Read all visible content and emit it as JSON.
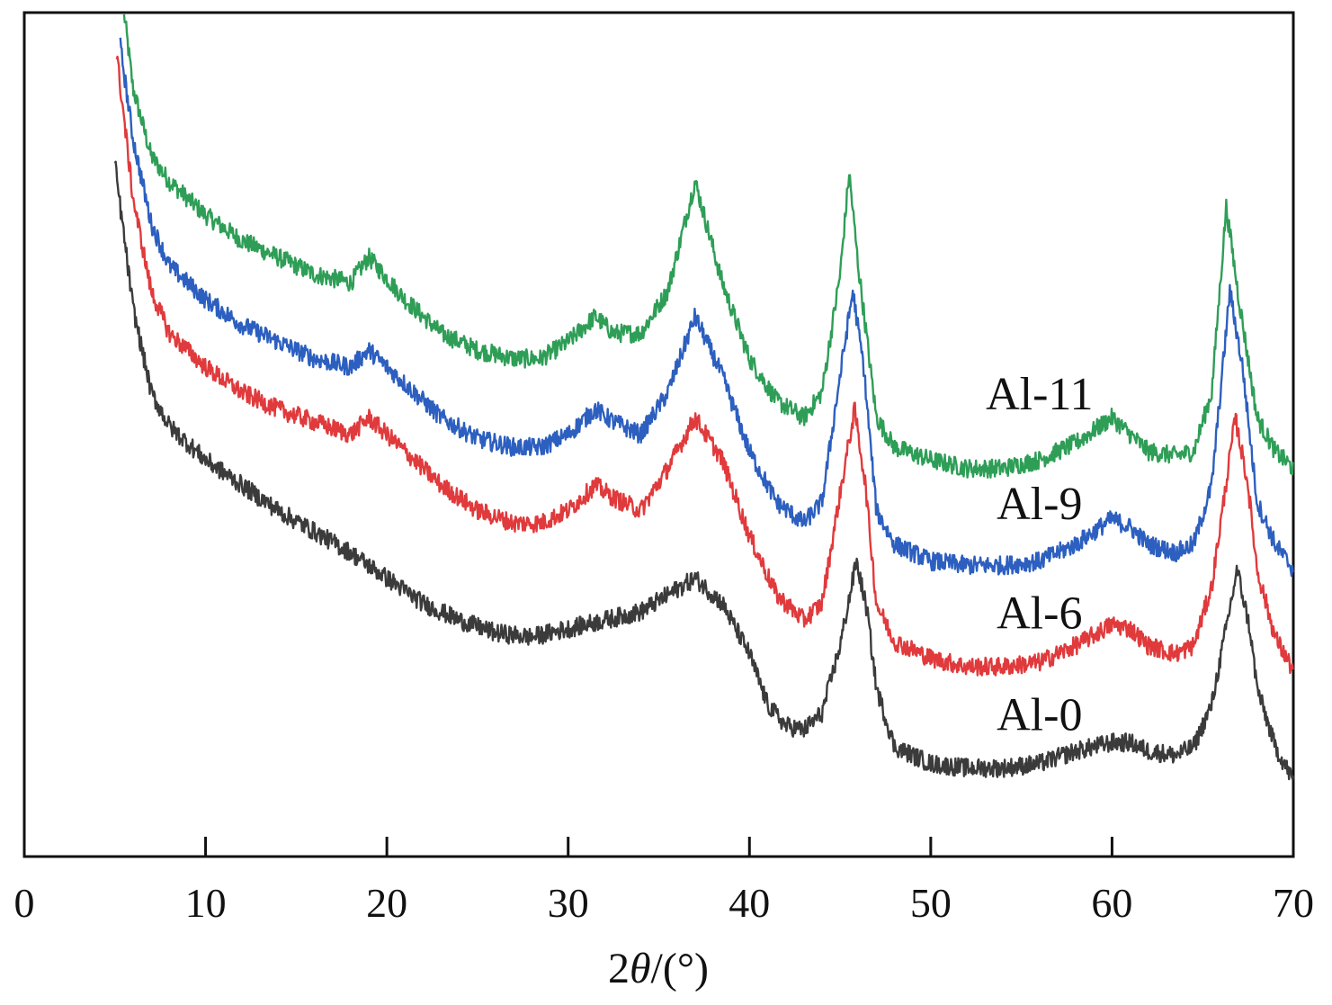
{
  "chart_data": {
    "type": "line",
    "title": "",
    "xlabel_prefix": "2",
    "xlabel_theta": "θ",
    "xlabel_suffix": "/(°)",
    "ylabel": "",
    "xlim": [
      0,
      70
    ],
    "ylim": [
      0,
      100
    ],
    "grid": false,
    "x_ticks": [
      0,
      10,
      20,
      30,
      40,
      50,
      60,
      70
    ],
    "x_tick_labels": [
      "0",
      "10",
      "20",
      "30",
      "40",
      "50",
      "60",
      "70"
    ],
    "series": [
      {
        "name": "Al-11",
        "color": "#2e9e57",
        "points": [
          [
            5.5,
            100
          ],
          [
            6,
            91
          ],
          [
            7,
            83
          ],
          [
            8,
            80
          ],
          [
            10,
            76
          ],
          [
            12,
            73
          ],
          [
            14,
            71
          ],
          [
            16,
            69
          ],
          [
            18,
            68
          ],
          [
            19,
            71
          ],
          [
            21,
            66
          ],
          [
            23,
            62
          ],
          [
            25,
            60
          ],
          [
            27,
            59
          ],
          [
            28.5,
            59
          ],
          [
            30,
            61
          ],
          [
            31.5,
            64
          ],
          [
            32.5,
            62
          ],
          [
            34,
            62
          ],
          [
            35.5,
            67
          ],
          [
            37,
            80
          ],
          [
            38.5,
            68
          ],
          [
            40,
            59
          ],
          [
            41.5,
            54
          ],
          [
            43,
            52
          ],
          [
            44,
            55
          ],
          [
            45,
            69
          ],
          [
            45.5,
            81
          ],
          [
            46,
            70
          ],
          [
            47,
            52
          ],
          [
            48,
            48.5
          ],
          [
            50,
            47
          ],
          [
            52,
            46
          ],
          [
            54,
            46
          ],
          [
            56,
            47
          ],
          [
            58,
            49
          ],
          [
            60,
            52
          ],
          [
            61,
            50
          ],
          [
            62,
            48
          ],
          [
            63.5,
            47.5
          ],
          [
            64.5,
            48
          ],
          [
            65.5,
            55
          ],
          [
            66.3,
            77
          ],
          [
            67,
            66
          ],
          [
            68,
            52
          ],
          [
            69,
            48
          ],
          [
            70,
            46
          ]
        ]
      },
      {
        "name": "Al-9",
        "color": "#2c5fbf",
        "points": [
          [
            5.3,
            96
          ],
          [
            6,
            85
          ],
          [
            7,
            75
          ],
          [
            8,
            70
          ],
          [
            10,
            66
          ],
          [
            12,
            63
          ],
          [
            14,
            61
          ],
          [
            16,
            59
          ],
          [
            18,
            58
          ],
          [
            19,
            60
          ],
          [
            21,
            56
          ],
          [
            23,
            52
          ],
          [
            25,
            49.5
          ],
          [
            27,
            48.5
          ],
          [
            28.5,
            48.5
          ],
          [
            30,
            50
          ],
          [
            31.5,
            53
          ],
          [
            32.5,
            51.5
          ],
          [
            34,
            50
          ],
          [
            35.5,
            55
          ],
          [
            37,
            64
          ],
          [
            38.5,
            57
          ],
          [
            40,
            48
          ],
          [
            41.5,
            42
          ],
          [
            43,
            39.5
          ],
          [
            44,
            42
          ],
          [
            45,
            57
          ],
          [
            45.7,
            67
          ],
          [
            46.3,
            58
          ],
          [
            47,
            41
          ],
          [
            48,
            37
          ],
          [
            50,
            35
          ],
          [
            52,
            34.5
          ],
          [
            54,
            34.5
          ],
          [
            56,
            35
          ],
          [
            58,
            37
          ],
          [
            60,
            40
          ],
          [
            61,
            39
          ],
          [
            62,
            37
          ],
          [
            63.5,
            36
          ],
          [
            64.5,
            37
          ],
          [
            65.5,
            44
          ],
          [
            66.5,
            67
          ],
          [
            67.2,
            58
          ],
          [
            68,
            42
          ],
          [
            69,
            37
          ],
          [
            70,
            34
          ]
        ]
      },
      {
        "name": "Al-6",
        "color": "#e03a3c",
        "points": [
          [
            5.1,
            95
          ],
          [
            6,
            78
          ],
          [
            7,
            67
          ],
          [
            8,
            62
          ],
          [
            10,
            58
          ],
          [
            12,
            55
          ],
          [
            14,
            53
          ],
          [
            16,
            51.5
          ],
          [
            18,
            50
          ],
          [
            19,
            52
          ],
          [
            21,
            48
          ],
          [
            23,
            44
          ],
          [
            25,
            41
          ],
          [
            27,
            39.5
          ],
          [
            28.5,
            39.5
          ],
          [
            30,
            41
          ],
          [
            31.5,
            44
          ],
          [
            32.5,
            42.5
          ],
          [
            34,
            41
          ],
          [
            35.5,
            46
          ],
          [
            37,
            52
          ],
          [
            38.5,
            47
          ],
          [
            40,
            38
          ],
          [
            41.5,
            31
          ],
          [
            43,
            28
          ],
          [
            44,
            30
          ],
          [
            45,
            43
          ],
          [
            45.8,
            53
          ],
          [
            46.4,
            44
          ],
          [
            47,
            30
          ],
          [
            48,
            25.5
          ],
          [
            50,
            23.5
          ],
          [
            52,
            22.5
          ],
          [
            54,
            22.5
          ],
          [
            56,
            23
          ],
          [
            58,
            25
          ],
          [
            60,
            27.5
          ],
          [
            61,
            27
          ],
          [
            62,
            25
          ],
          [
            63.5,
            24
          ],
          [
            64.5,
            25
          ],
          [
            65.5,
            32
          ],
          [
            66.8,
            52
          ],
          [
            67.5,
            44
          ],
          [
            68,
            34
          ],
          [
            69,
            26
          ],
          [
            70,
            22
          ]
        ]
      },
      {
        "name": "Al-0",
        "color": "#3b3b3b",
        "points": [
          [
            5,
            82
          ],
          [
            6,
            65
          ],
          [
            7,
            55
          ],
          [
            8,
            51
          ],
          [
            10,
            47
          ],
          [
            12,
            44
          ],
          [
            14,
            41
          ],
          [
            16,
            38.5
          ],
          [
            18,
            36
          ],
          [
            20,
            33
          ],
          [
            22,
            30
          ],
          [
            24,
            28
          ],
          [
            26,
            26.5
          ],
          [
            28,
            26
          ],
          [
            30,
            27
          ],
          [
            32,
            28
          ],
          [
            34,
            29
          ],
          [
            35.5,
            31
          ],
          [
            37,
            33
          ],
          [
            38.5,
            30
          ],
          [
            40,
            24
          ],
          [
            41,
            18
          ],
          [
            42,
            15.5
          ],
          [
            43,
            15
          ],
          [
            44,
            17
          ],
          [
            45,
            25
          ],
          [
            45.9,
            35
          ],
          [
            46.5,
            29
          ],
          [
            47,
            20
          ],
          [
            48,
            13
          ],
          [
            50,
            11
          ],
          [
            52,
            10.5
          ],
          [
            54,
            10.5
          ],
          [
            56,
            11
          ],
          [
            58,
            12.5
          ],
          [
            60,
            13.5
          ],
          [
            61,
            13.5
          ],
          [
            62,
            12.5
          ],
          [
            63.5,
            12
          ],
          [
            64.5,
            13
          ],
          [
            65.5,
            18
          ],
          [
            66.9,
            34
          ],
          [
            67.6,
            27
          ],
          [
            68,
            20
          ],
          [
            69,
            13
          ],
          [
            70,
            9
          ]
        ]
      }
    ],
    "annotations": [
      {
        "text": "Al-11",
        "x": 56,
        "y": 53
      },
      {
        "text": "Al-9",
        "x": 56,
        "y": 40
      },
      {
        "text": "Al-6",
        "x": 56,
        "y": 27
      },
      {
        "text": "Al-0",
        "x": 56,
        "y": 15
      }
    ]
  }
}
